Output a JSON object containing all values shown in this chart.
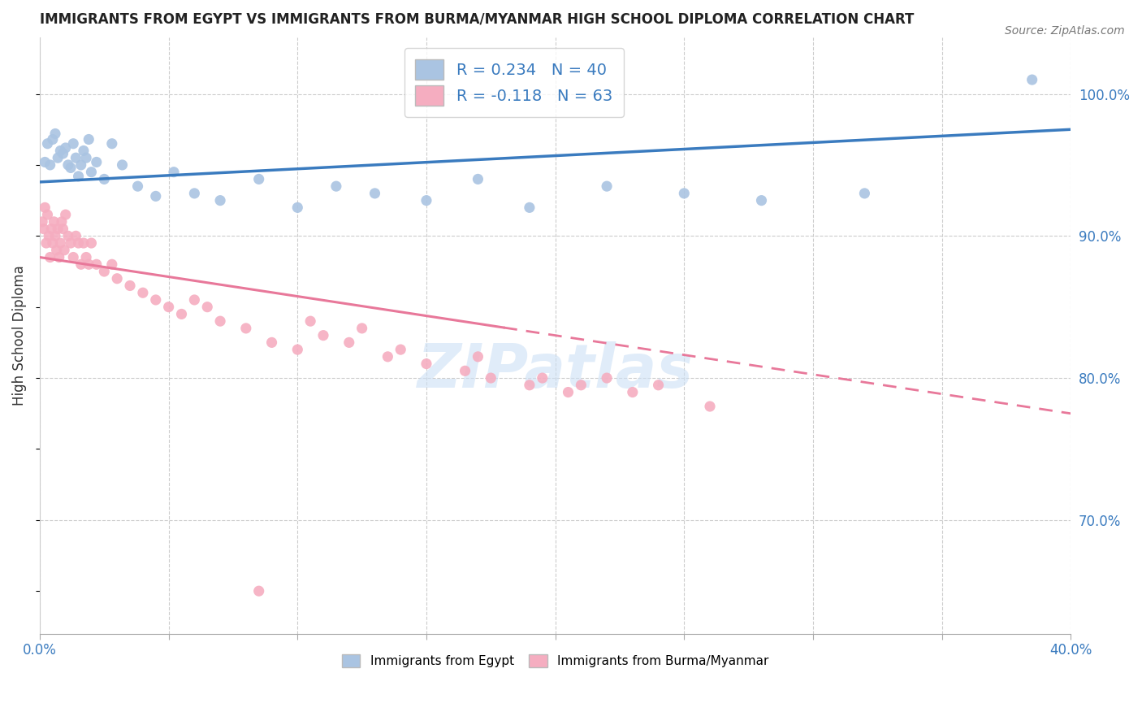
{
  "title": "IMMIGRANTS FROM EGYPT VS IMMIGRANTS FROM BURMA/MYANMAR HIGH SCHOOL DIPLOMA CORRELATION CHART",
  "source": "Source: ZipAtlas.com",
  "ylabel": "High School Diploma",
  "xlim": [
    0.0,
    40.0
  ],
  "ylim": [
    62.0,
    104.0
  ],
  "right_yticks": [
    70.0,
    80.0,
    90.0,
    100.0
  ],
  "legend_r1": "R = 0.234",
  "legend_n1": "N = 40",
  "legend_r2": "R = -0.118",
  "legend_n2": "N = 63",
  "color_egypt": "#aac4e2",
  "color_burma": "#f5adc0",
  "trendline_egypt_color": "#3a7bbf",
  "trendline_burma_color": "#e8789a",
  "watermark": "ZIPatlas",
  "egypt_x": [
    0.2,
    0.3,
    0.4,
    0.5,
    0.6,
    0.7,
    0.8,
    0.9,
    1.0,
    1.1,
    1.2,
    1.3,
    1.4,
    1.5,
    1.6,
    1.7,
    1.8,
    1.9,
    2.0,
    2.2,
    2.5,
    2.8,
    3.2,
    3.8,
    4.5,
    5.2,
    6.0,
    7.0,
    8.5,
    10.0,
    11.5,
    13.0,
    15.0,
    17.0,
    19.0,
    22.0,
    25.0,
    28.0,
    32.0,
    38.5
  ],
  "egypt_y": [
    95.2,
    96.5,
    95.0,
    96.8,
    97.2,
    95.5,
    96.0,
    95.8,
    96.2,
    95.0,
    94.8,
    96.5,
    95.5,
    94.2,
    95.0,
    96.0,
    95.5,
    96.8,
    94.5,
    95.2,
    94.0,
    96.5,
    95.0,
    93.5,
    92.8,
    94.5,
    93.0,
    92.5,
    94.0,
    92.0,
    93.5,
    93.0,
    92.5,
    94.0,
    92.0,
    93.5,
    93.0,
    92.5,
    93.0,
    101.0
  ],
  "burma_x": [
    0.1,
    0.15,
    0.2,
    0.25,
    0.3,
    0.35,
    0.4,
    0.45,
    0.5,
    0.55,
    0.6,
    0.65,
    0.7,
    0.75,
    0.8,
    0.85,
    0.9,
    0.95,
    1.0,
    1.1,
    1.2,
    1.3,
    1.4,
    1.5,
    1.6,
    1.7,
    1.8,
    1.9,
    2.0,
    2.2,
    2.5,
    2.8,
    3.0,
    3.5,
    4.0,
    4.5,
    5.0,
    5.5,
    6.0,
    6.5,
    7.0,
    8.0,
    9.0,
    10.0,
    11.0,
    12.0,
    13.5,
    15.0,
    16.5,
    17.5,
    19.0,
    20.5,
    22.0,
    24.0,
    26.0,
    10.5,
    12.5,
    14.0,
    17.0,
    19.5,
    21.0,
    23.0,
    8.5
  ],
  "burma_y": [
    91.0,
    90.5,
    92.0,
    89.5,
    91.5,
    90.0,
    88.5,
    90.5,
    89.5,
    91.0,
    90.0,
    89.0,
    90.5,
    88.5,
    89.5,
    91.0,
    90.5,
    89.0,
    91.5,
    90.0,
    89.5,
    88.5,
    90.0,
    89.5,
    88.0,
    89.5,
    88.5,
    88.0,
    89.5,
    88.0,
    87.5,
    88.0,
    87.0,
    86.5,
    86.0,
    85.5,
    85.0,
    84.5,
    85.5,
    85.0,
    84.0,
    83.5,
    82.5,
    82.0,
    83.0,
    82.5,
    81.5,
    81.0,
    80.5,
    80.0,
    79.5,
    79.0,
    80.0,
    79.5,
    78.0,
    84.0,
    83.5,
    82.0,
    81.5,
    80.0,
    79.5,
    79.0,
    65.0
  ],
  "egypt_trend_x0": 0.0,
  "egypt_trend_y0": 93.8,
  "egypt_trend_x1": 40.0,
  "egypt_trend_y1": 97.5,
  "burma_trend_x0": 0.0,
  "burma_trend_y0": 88.5,
  "burma_trend_x1": 40.0,
  "burma_trend_y1": 77.5,
  "burma_solid_end_x": 18.0
}
